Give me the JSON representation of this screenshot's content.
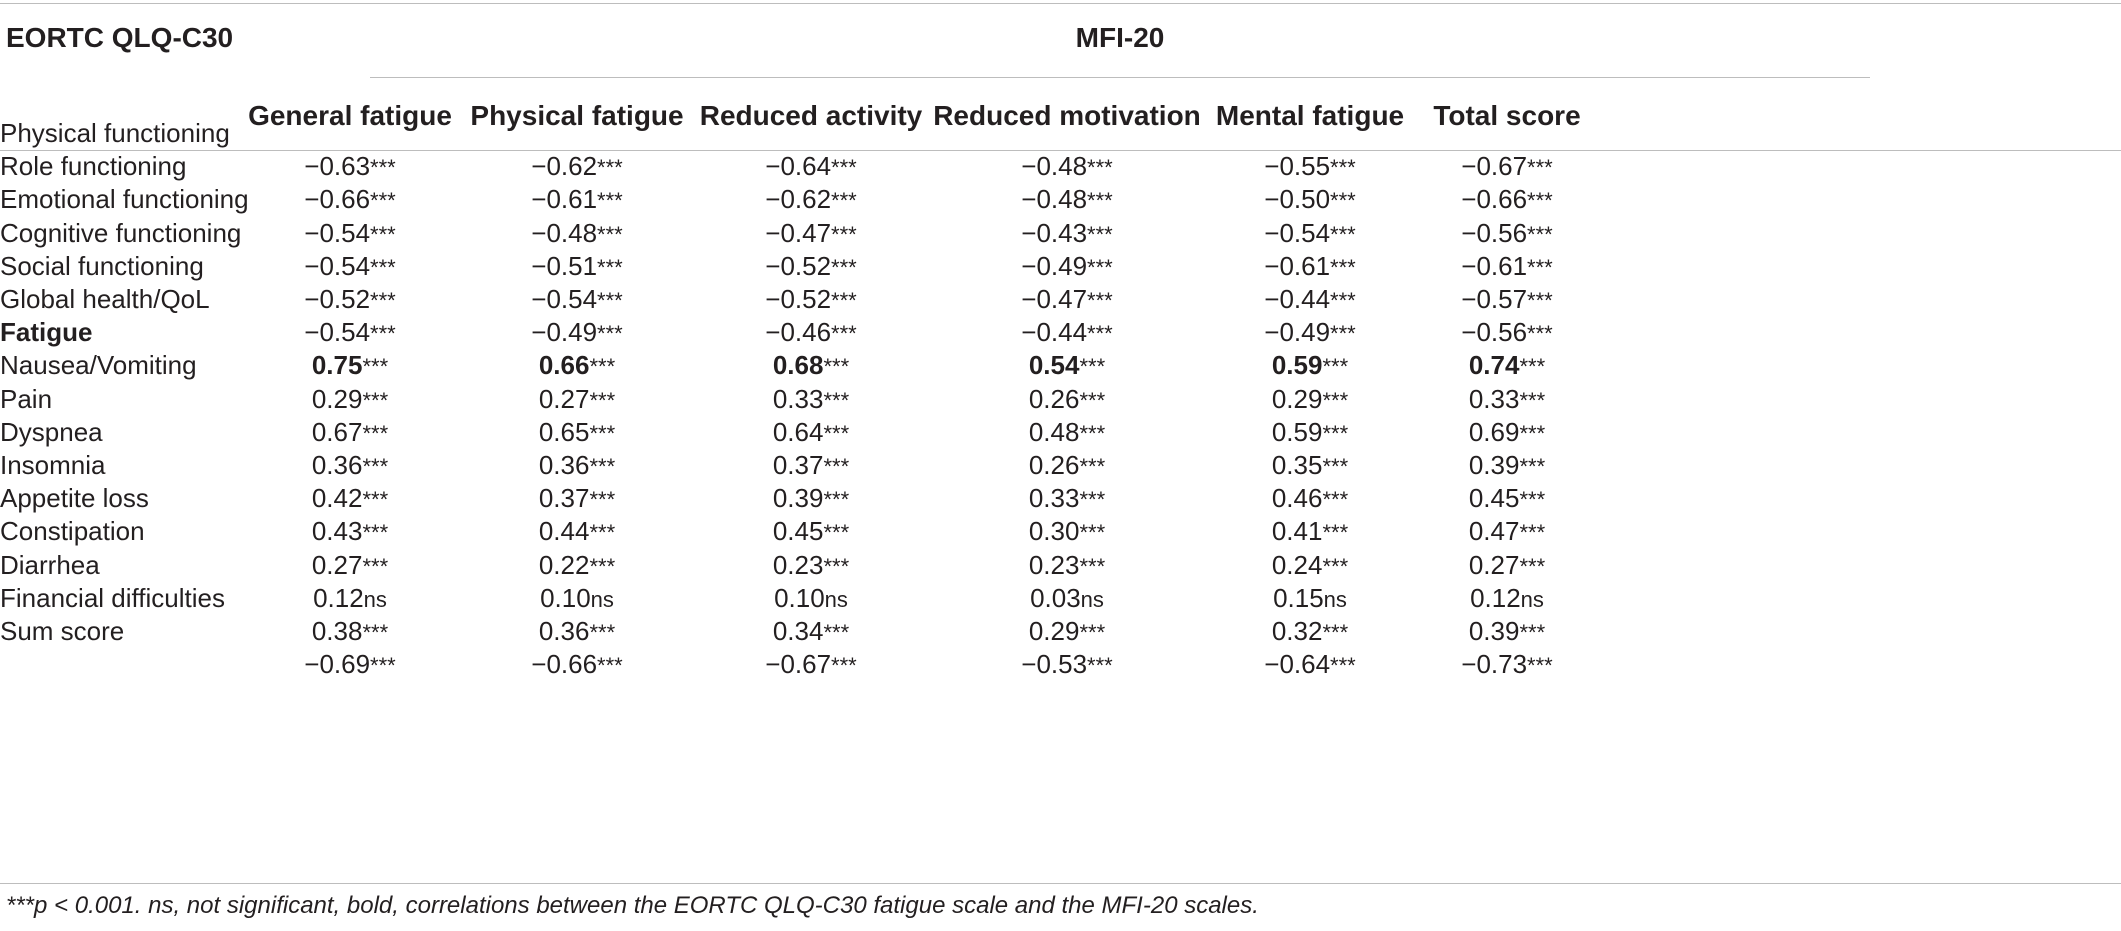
{
  "header": {
    "left_title": "EORTC QLQ-C30",
    "group_title": "MFI-20",
    "columns": [
      "General fatigue",
      "Physical fatigue",
      "Reduced activity",
      "Reduced motivation",
      "Mental fatigue",
      "Total score"
    ]
  },
  "rows": [
    {
      "label": "Physical functioning",
      "bold": false,
      "cells": [
        [
          "−0.63",
          "***"
        ],
        [
          "−0.62",
          "***"
        ],
        [
          "−0.64",
          "***"
        ],
        [
          "−0.48",
          "***"
        ],
        [
          "−0.55",
          "***"
        ],
        [
          "−0.67",
          "***"
        ]
      ]
    },
    {
      "label": "Role functioning",
      "bold": false,
      "cells": [
        [
          "−0.66",
          "***"
        ],
        [
          "−0.61",
          "***"
        ],
        [
          "−0.62",
          "***"
        ],
        [
          "−0.48",
          "***"
        ],
        [
          "−0.50",
          "***"
        ],
        [
          "−0.66",
          "***"
        ]
      ]
    },
    {
      "label": "Emotional functioning",
      "bold": false,
      "cells": [
        [
          "−0.54",
          "***"
        ],
        [
          "−0.48",
          "***"
        ],
        [
          "−0.47",
          "***"
        ],
        [
          "−0.43",
          "***"
        ],
        [
          "−0.54",
          "***"
        ],
        [
          "−0.56",
          "***"
        ]
      ]
    },
    {
      "label": "Cognitive functioning",
      "bold": false,
      "cells": [
        [
          "−0.54",
          "***"
        ],
        [
          "−0.51",
          "***"
        ],
        [
          "−0.52",
          "***"
        ],
        [
          "−0.49",
          "***"
        ],
        [
          "−0.61",
          "***"
        ],
        [
          "−0.61",
          "***"
        ]
      ]
    },
    {
      "label": "Social functioning",
      "bold": false,
      "cells": [
        [
          "−0.52",
          "***"
        ],
        [
          "−0.54",
          "***"
        ],
        [
          "−0.52",
          "***"
        ],
        [
          "−0.47",
          "***"
        ],
        [
          "−0.44",
          "***"
        ],
        [
          "−0.57",
          "***"
        ]
      ]
    },
    {
      "label": "Global health/QoL",
      "bold": false,
      "cells": [
        [
          "−0.54",
          "***"
        ],
        [
          "−0.49",
          "***"
        ],
        [
          "−0.46",
          "***"
        ],
        [
          "−0.44",
          "***"
        ],
        [
          "−0.49",
          "***"
        ],
        [
          "−0.56",
          "***"
        ]
      ]
    },
    {
      "label": "Fatigue",
      "bold": true,
      "cells": [
        [
          "0.75",
          "***"
        ],
        [
          "0.66",
          "***"
        ],
        [
          "0.68",
          "***"
        ],
        [
          "0.54",
          "***"
        ],
        [
          "0.59",
          "***"
        ],
        [
          "0.74",
          "***"
        ]
      ]
    },
    {
      "label": "Nausea/Vomiting",
      "bold": false,
      "cells": [
        [
          "0.29",
          "***"
        ],
        [
          "0.27",
          "***"
        ],
        [
          "0.33",
          "***"
        ],
        [
          "0.26",
          "***"
        ],
        [
          "0.29",
          "***"
        ],
        [
          "0.33",
          "***"
        ]
      ]
    },
    {
      "label": "Pain",
      "bold": false,
      "cells": [
        [
          "0.67",
          "***"
        ],
        [
          "0.65",
          "***"
        ],
        [
          "0.64",
          "***"
        ],
        [
          "0.48",
          "***"
        ],
        [
          "0.59",
          "***"
        ],
        [
          "0.69",
          "***"
        ]
      ]
    },
    {
      "label": "Dyspnea",
      "bold": false,
      "cells": [
        [
          "0.36",
          "***"
        ],
        [
          "0.36",
          "***"
        ],
        [
          "0.37",
          "***"
        ],
        [
          "0.26",
          "***"
        ],
        [
          "0.35",
          "***"
        ],
        [
          "0.39",
          "***"
        ]
      ]
    },
    {
      "label": "Insomnia",
      "bold": false,
      "cells": [
        [
          "0.42",
          "***"
        ],
        [
          "0.37",
          "***"
        ],
        [
          "0.39",
          "***"
        ],
        [
          "0.33",
          "***"
        ],
        [
          "0.46",
          "***"
        ],
        [
          "0.45",
          "***"
        ]
      ]
    },
    {
      "label": "Appetite loss",
      "bold": false,
      "cells": [
        [
          "0.43",
          "***"
        ],
        [
          "0.44",
          "***"
        ],
        [
          "0.45",
          "***"
        ],
        [
          "0.30",
          "***"
        ],
        [
          "0.41",
          "***"
        ],
        [
          "0.47",
          "***"
        ]
      ]
    },
    {
      "label": "Constipation",
      "bold": false,
      "cells": [
        [
          "0.27",
          "***"
        ],
        [
          "0.22",
          "***"
        ],
        [
          "0.23",
          "***"
        ],
        [
          "0.23",
          "***"
        ],
        [
          "0.24",
          "***"
        ],
        [
          "0.27",
          "***"
        ]
      ]
    },
    {
      "label": "Diarrhea",
      "bold": false,
      "cells": [
        [
          "0.12",
          "ns"
        ],
        [
          "0.10",
          "ns"
        ],
        [
          "0.10",
          "ns"
        ],
        [
          "0.03",
          "ns"
        ],
        [
          "0.15",
          "ns"
        ],
        [
          "0.12",
          "ns"
        ]
      ]
    },
    {
      "label": "Financial difficulties",
      "bold": false,
      "cells": [
        [
          "0.38",
          "***"
        ],
        [
          "0.36",
          "***"
        ],
        [
          "0.34",
          "***"
        ],
        [
          "0.29",
          "***"
        ],
        [
          "0.32",
          "***"
        ],
        [
          "0.39",
          "***"
        ]
      ]
    },
    {
      "label": "Sum score",
      "bold": false,
      "cells": [
        [
          "−0.69",
          "***"
        ],
        [
          "−0.66",
          "***"
        ],
        [
          "−0.67",
          "***"
        ],
        [
          "−0.53",
          "***"
        ],
        [
          "−0.64",
          "***"
        ],
        [
          "−0.73",
          "***"
        ]
      ]
    }
  ],
  "footnote": "***p < 0.001. ns, not significant, bold, correlations between the EORTC QLQ-C30 fatigue scale and the MFI-20 scales."
}
